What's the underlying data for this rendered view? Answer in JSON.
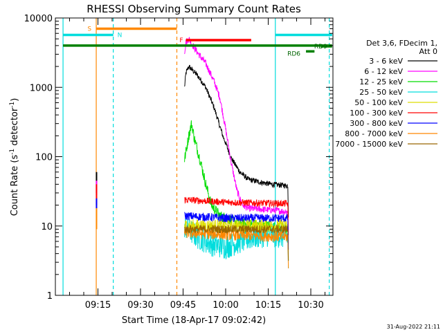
{
  "chart_data": {
    "type": "line",
    "title": "RHESSI Observing Summary Count Rates",
    "xlabel": "Start Time (18-Apr-17 09:02:42)",
    "ylabel_parts": [
      "Count Rate (s",
      "-1",
      " detector",
      "-1",
      ")"
    ],
    "yscale": "log",
    "ylim": [
      1,
      10000
    ],
    "xlim_minutes": [
      9.0,
      10.63
    ],
    "x_tick_labels": [
      "09:15",
      "09:30",
      "09:45",
      "10:00",
      "10:15",
      "10:30"
    ],
    "y_tick_labels": [
      "1",
      "10",
      "100",
      "1000",
      "10000"
    ],
    "legend_header": [
      "Det 3,6, FDecim 1,",
      "Att 0"
    ],
    "legend": [
      {
        "label": "3 - 6 keV",
        "color": "#000000"
      },
      {
        "label": "6 - 12 keV",
        "color": "#ff00ff"
      },
      {
        "label": "12 - 25 keV",
        "color": "#00dd00"
      },
      {
        "label": "25 - 50 keV",
        "color": "#00dddd"
      },
      {
        "label": "50 - 100 keV",
        "color": "#dddd00"
      },
      {
        "label": "100 - 300 keV",
        "color": "#ff0000"
      },
      {
        "label": "300 - 800 keV",
        "color": "#0000ff"
      },
      {
        "label": "800 - 7000 keV",
        "color": "#ff8800"
      },
      {
        "label": "7000 - 15000 keV",
        "color": "#996600"
      }
    ],
    "series": [
      {
        "name": "3 - 6 keV",
        "color": "#000000",
        "noise": 0.04,
        "points": [
          [
            "09:45.5",
            1000
          ],
          [
            "09:46",
            1600
          ],
          [
            "09:47",
            2000
          ],
          [
            "09:50",
            1500
          ],
          [
            "09:53",
            1000
          ],
          [
            "09:56",
            500
          ],
          [
            "09:59",
            200
          ],
          [
            "10:02",
            95
          ],
          [
            "10:05",
            60
          ],
          [
            "10:08",
            47
          ],
          [
            "10:12",
            43
          ],
          [
            "10:16",
            40
          ],
          [
            "10:22",
            38
          ]
        ]
      },
      {
        "name": "6 - 12 keV",
        "color": "#ff00ff",
        "noise": 0.05,
        "points": [
          [
            "09:45.5",
            3200
          ],
          [
            "09:46",
            4500
          ],
          [
            "09:47",
            5000
          ],
          [
            "09:50",
            3200
          ],
          [
            "09:53",
            2200
          ],
          [
            "09:56",
            1200
          ],
          [
            "09:58",
            700
          ],
          [
            "10:00",
            250
          ],
          [
            "10:02",
            80
          ],
          [
            "10:04",
            32
          ],
          [
            "10:06",
            20
          ],
          [
            "10:08",
            18
          ],
          [
            "10:16",
            17
          ],
          [
            "10:22",
            16
          ]
        ]
      },
      {
        "name": "12 - 25 keV",
        "color": "#00dd00",
        "noise": 0.08,
        "points": [
          [
            "09:45.5",
            90
          ],
          [
            "09:47",
            200
          ],
          [
            "09:48",
            300
          ],
          [
            "09:49",
            180
          ],
          [
            "09:51",
            90
          ],
          [
            "09:53",
            40
          ],
          [
            "09:55",
            20
          ],
          [
            "09:58",
            14
          ],
          [
            "10:05",
            11
          ],
          [
            "10:15",
            10
          ],
          [
            "10:22",
            9
          ]
        ]
      },
      {
        "name": "25 - 50 keV",
        "color": "#00dddd",
        "noise": 0.18,
        "points": [
          [
            "09:45.5",
            10
          ],
          [
            "09:50",
            7
          ],
          [
            "09:55",
            5.5
          ],
          [
            "10:00",
            5
          ],
          [
            "10:05",
            6
          ],
          [
            "10:10",
            7
          ],
          [
            "10:15",
            7.5
          ],
          [
            "10:22",
            7
          ]
        ]
      },
      {
        "name": "50 - 100 keV",
        "color": "#dddd00",
        "noise": 0.1,
        "points": [
          [
            "09:45.5",
            10
          ],
          [
            "10:00",
            10
          ],
          [
            "10:22",
            10
          ]
        ]
      },
      {
        "name": "100 - 300 keV",
        "color": "#ff0000",
        "noise": 0.05,
        "points": [
          [
            "09:45.5",
            24
          ],
          [
            "10:00",
            22
          ],
          [
            "10:22",
            21
          ]
        ]
      },
      {
        "name": "300 - 800 keV",
        "color": "#0000ff",
        "noise": 0.06,
        "points": [
          [
            "09:45.5",
            14
          ],
          [
            "10:00",
            13
          ],
          [
            "10:22",
            13
          ]
        ]
      },
      {
        "name": "800 - 7000 keV",
        "color": "#ff8800",
        "noise": 0.08,
        "points": [
          [
            "09:45.5",
            8
          ],
          [
            "10:00",
            7.5
          ],
          [
            "10:22",
            7
          ]
        ]
      },
      {
        "name": "7000 - 15000 keV",
        "color": "#996600",
        "noise": 0.06,
        "points": [
          [
            "09:45.5",
            9
          ],
          [
            "10:00",
            9
          ],
          [
            "10:22",
            9
          ]
        ]
      }
    ],
    "early_spike": {
      "time": "09:14.5",
      "segments": [
        {
          "color": "#000000",
          "from": 30,
          "to": 60
        },
        {
          "color": "#ff00ff",
          "from": 28,
          "to": 45
        },
        {
          "color": "#ff0000",
          "from": 20,
          "to": 40
        },
        {
          "color": "#0000ff",
          "from": 18,
          "to": 25
        },
        {
          "color": "#ff8800",
          "from": 9,
          "to": 18
        }
      ]
    },
    "vertical_markers": [
      {
        "time": "09:02.7",
        "color": "#00dddd",
        "style": "solid"
      },
      {
        "time": "09:14.4",
        "color": "#ff8800",
        "style": "solid"
      },
      {
        "time": "09:20.4",
        "color": "#00dddd",
        "style": "dashed"
      },
      {
        "time": "09:42.8",
        "color": "#ff8800",
        "style": "dashed"
      },
      {
        "time": "10:17.5",
        "color": "#00dddd",
        "style": "solid"
      },
      {
        "time": "10:36.5",
        "color": "#00dddd",
        "style": "dashed"
      }
    ],
    "flag_bars": [
      {
        "label": "S",
        "color": "#ff8800",
        "start": "09:14.4",
        "end": "09:42.8",
        "level": 7000
      },
      {
        "label": "N",
        "color": "#00dddd",
        "start": "09:02.7",
        "end": "09:20.4",
        "level": 5700
      },
      {
        "label": "",
        "color": "#00dddd",
        "start": "10:17.5",
        "end": "10:37.5",
        "level": 5700
      },
      {
        "label": "F",
        "color": "#ff0000",
        "start": "09:46.0",
        "end": "10:09.0",
        "level": 4800
      },
      {
        "label": "",
        "color": "#008000",
        "start": "09:02.7",
        "end": "10:37.5",
        "level": 4000
      },
      {
        "label": "RD6",
        "color": "#008000",
        "start": "10:28.3",
        "end": "10:31.3",
        "level": 3300
      },
      {
        "label": "RD9",
        "color": "#008000",
        "start": "10:33.5",
        "end": "10:37.5",
        "level": 3900
      }
    ],
    "timestamp": "31-Aug-2022 21:11"
  }
}
